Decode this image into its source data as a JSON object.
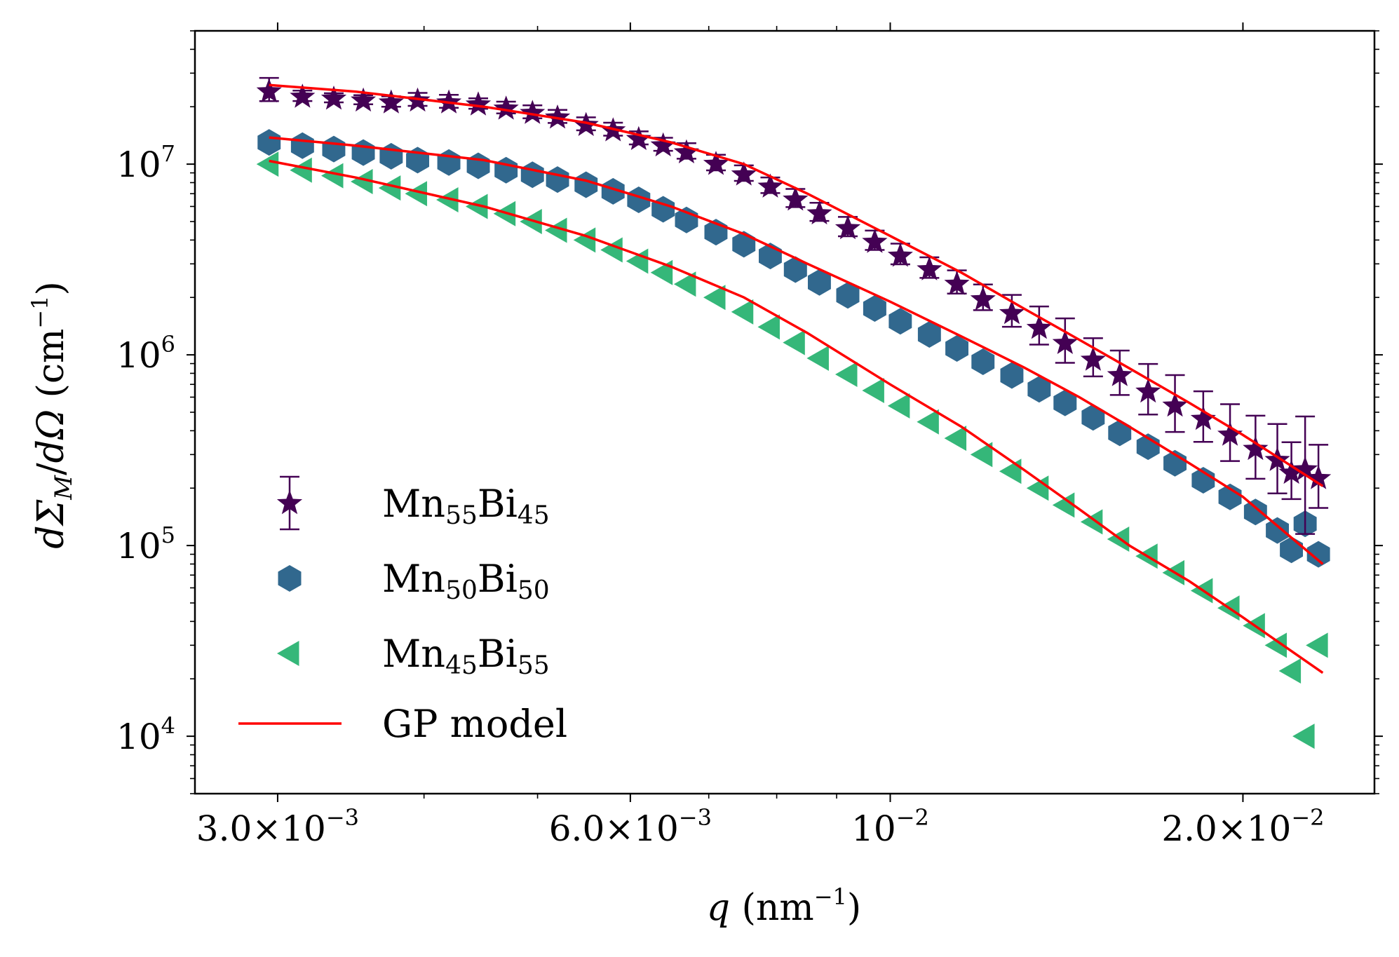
{
  "chart_data": {
    "type": "scatter",
    "title": "",
    "xlabel": "q (nm⁻¹)",
    "xlabel_parts": {
      "var": "q",
      "unit": "(nm",
      "exp": "−1",
      "close": ")"
    },
    "ylabel": "dΣ_M/dΩ (cm⁻¹)",
    "ylabel_parts": {
      "d1": "dΣ",
      "sub": "M",
      "slash": "/",
      "d2": "dΩ",
      "unit": " (cm",
      "exp": "−1",
      "close": ")"
    },
    "xscale": "log",
    "yscale": "log",
    "xlim": [
      0.00255,
      0.0259
    ],
    "ylim": [
      5000,
      50000000
    ],
    "x_ticks": [
      {
        "value": 0.003,
        "mantissa": "3.0×10",
        "exp": "−3"
      },
      {
        "value": 0.006,
        "mantissa": "6.0×10",
        "exp": "−3"
      },
      {
        "value": 0.01,
        "mantissa": "10",
        "exp": "−2"
      },
      {
        "value": 0.02,
        "mantissa": "2.0×10",
        "exp": "−2"
      }
    ],
    "y_ticks": [
      {
        "value": 10000,
        "mantissa": "10",
        "exp": "4"
      },
      {
        "value": 100000,
        "mantissa": "10",
        "exp": "5"
      },
      {
        "value": 1000000,
        "mantissa": "10",
        "exp": "6"
      },
      {
        "value": 10000000,
        "mantissa": "10",
        "exp": "7"
      }
    ],
    "legend": {
      "position": "lower-left"
    },
    "series": [
      {
        "name": "Mn55Bi45",
        "label_parts": {
          "a": "Mn",
          "sa": "55",
          "b": "Bi",
          "sb": "45"
        },
        "marker": "star",
        "color": "#440154",
        "error_bars": true,
        "x": [
          0.00295,
          0.00315,
          0.00335,
          0.00355,
          0.00375,
          0.00395,
          0.0042,
          0.00445,
          0.0047,
          0.00495,
          0.0052,
          0.0055,
          0.0058,
          0.0061,
          0.0064,
          0.0067,
          0.0071,
          0.0075,
          0.0079,
          0.0083,
          0.0087,
          0.0092,
          0.0097,
          0.0102,
          0.0108,
          0.0114,
          0.012,
          0.0127,
          0.0134,
          0.0141,
          0.0149,
          0.0157,
          0.0166,
          0.0175,
          0.0185,
          0.0195,
          0.0205,
          0.0214,
          0.022,
          0.0226,
          0.0232
        ],
        "y": [
          24000000,
          22500000,
          22000000,
          21500000,
          21000000,
          21500000,
          21000000,
          20500000,
          19500000,
          18500000,
          17500000,
          16000000,
          15000000,
          13500000,
          12500000,
          11500000,
          10000000,
          8800000,
          7600000,
          6500000,
          5500000,
          4600000,
          3900000,
          3300000,
          2800000,
          2350000,
          1950000,
          1650000,
          1380000,
          1150000,
          940000,
          780000,
          640000,
          540000,
          460000,
          380000,
          320000,
          280000,
          240000,
          250000,
          225000
        ],
        "err_rel": [
          0.18,
          0.08,
          0.07,
          0.07,
          0.08,
          0.1,
          0.1,
          0.08,
          0.09,
          0.1,
          0.1,
          0.1,
          0.1,
          0.1,
          0.1,
          0.12,
          0.12,
          0.12,
          0.12,
          0.14,
          0.14,
          0.15,
          0.15,
          0.16,
          0.16,
          0.18,
          0.2,
          0.25,
          0.3,
          0.35,
          0.3,
          0.35,
          0.4,
          0.45,
          0.4,
          0.45,
          0.5,
          0.55,
          0.45,
          0.9,
          0.5
        ]
      },
      {
        "name": "Mn50Bi50",
        "label_parts": {
          "a": "Mn",
          "sa": "50",
          "b": "Bi",
          "sb": "50"
        },
        "marker": "hexagon",
        "color": "#31688e",
        "error_bars": false,
        "x": [
          0.00295,
          0.00315,
          0.00335,
          0.00355,
          0.00375,
          0.00395,
          0.0042,
          0.00445,
          0.0047,
          0.00495,
          0.0052,
          0.0055,
          0.0058,
          0.0061,
          0.0064,
          0.0067,
          0.0071,
          0.0075,
          0.0079,
          0.0083,
          0.0087,
          0.0092,
          0.0097,
          0.0102,
          0.0108,
          0.0114,
          0.012,
          0.0127,
          0.0134,
          0.0141,
          0.0149,
          0.0157,
          0.0166,
          0.0175,
          0.0185,
          0.0195,
          0.0205,
          0.0214,
          0.022,
          0.0226,
          0.0232
        ],
        "y": [
          13000000,
          12500000,
          12000000,
          11500000,
          11000000,
          10500000,
          10200000,
          9800000,
          9300000,
          8800000,
          8300000,
          7800000,
          7200000,
          6500000,
          5800000,
          5100000,
          4400000,
          3800000,
          3300000,
          2800000,
          2400000,
          2050000,
          1750000,
          1500000,
          1280000,
          1080000,
          920000,
          780000,
          660000,
          560000,
          470000,
          390000,
          330000,
          270000,
          220000,
          180000,
          150000,
          120000,
          95000,
          130000,
          90000
        ]
      },
      {
        "name": "Mn45Bi55",
        "label_parts": {
          "a": "Mn",
          "sa": "45",
          "b": "Bi",
          "sb": "55"
        },
        "marker": "triangle-left",
        "color": "#35b779",
        "error_bars": false,
        "x": [
          0.00295,
          0.00315,
          0.00335,
          0.00355,
          0.00375,
          0.00395,
          0.0042,
          0.00445,
          0.0047,
          0.00495,
          0.0052,
          0.0055,
          0.0058,
          0.0061,
          0.0064,
          0.0067,
          0.0071,
          0.0075,
          0.0079,
          0.0083,
          0.0087,
          0.0092,
          0.0097,
          0.0102,
          0.0108,
          0.0114,
          0.012,
          0.0127,
          0.0134,
          0.0141,
          0.0149,
          0.0157,
          0.0166,
          0.0175,
          0.0185,
          0.0195,
          0.0205,
          0.0214,
          0.022,
          0.0226,
          0.0232
        ],
        "y": [
          10000000,
          9300000,
          8700000,
          8100000,
          7500000,
          7000000,
          6500000,
          6000000,
          5500000,
          5000000,
          4500000,
          4000000,
          3550000,
          3100000,
          2700000,
          2350000,
          2000000,
          1680000,
          1400000,
          1160000,
          960000,
          790000,
          650000,
          540000,
          445000,
          365000,
          300000,
          245000,
          200000,
          163000,
          133000,
          108000,
          88000,
          72000,
          58000,
          47000,
          38000,
          30000,
          22000,
          10000,
          30000
        ]
      },
      {
        "name": "GP model",
        "label_parts": {
          "a": "GP model",
          "sa": "",
          "b": "",
          "sb": ""
        },
        "marker": "line",
        "color": "#ff0000",
        "curves": [
          {
            "x": [
              0.00295,
              0.0035,
              0.0045,
              0.0055,
              0.0065,
              0.0075,
              0.0085,
              0.01,
              0.0115,
              0.013,
              0.0145,
              0.016,
              0.018,
              0.02,
              0.0234
            ],
            "y": [
              26000000,
              24000000,
              20000000,
              16500000,
              13000000,
              10000000,
              7000000,
              4200000,
              2700000,
              1750000,
              1200000,
              850000,
              560000,
              380000,
              205000
            ]
          },
          {
            "x": [
              0.00295,
              0.0035,
              0.0045,
              0.0055,
              0.0065,
              0.0075,
              0.0085,
              0.01,
              0.0115,
              0.013,
              0.0145,
              0.016,
              0.018,
              0.02,
              0.0234
            ],
            "y": [
              13800000,
              12500000,
              10500000,
              8200000,
              6000000,
              4300000,
              3000000,
              1900000,
              1250000,
              860000,
              600000,
              420000,
              270000,
              180000,
              80000
            ]
          },
          {
            "x": [
              0.00295,
              0.0035,
              0.0045,
              0.0055,
              0.0065,
              0.0075,
              0.0085,
              0.01,
              0.0115,
              0.013,
              0.0145,
              0.016,
              0.018,
              0.02,
              0.0234
            ],
            "y": [
              10400000,
              8500000,
              6000000,
              4200000,
              2900000,
              2000000,
              1300000,
              700000,
              420000,
              250000,
              155000,
              100000,
              65000,
              42000,
              21500
            ]
          }
        ]
      }
    ]
  }
}
